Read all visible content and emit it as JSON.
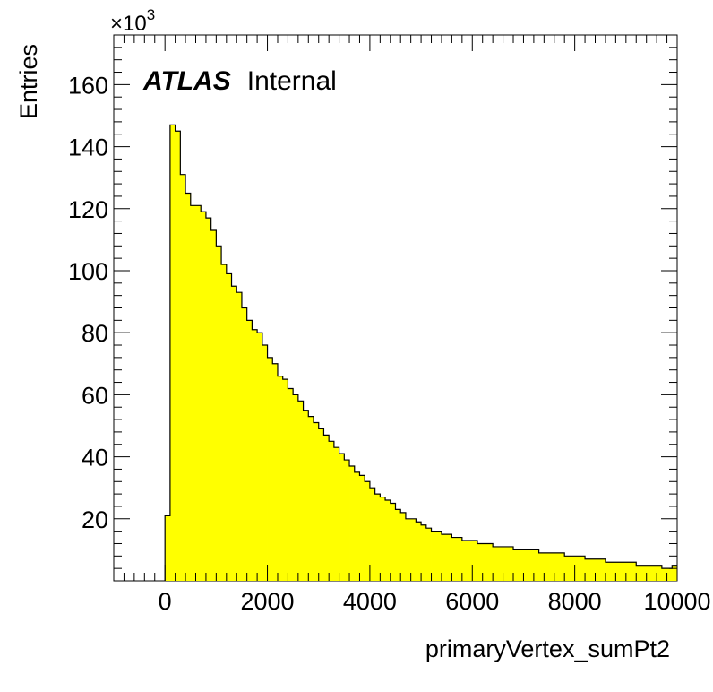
{
  "chart_data": {
    "type": "bar",
    "style": "step-histogram",
    "fill_color": "#ffff00",
    "line_color": "#000000",
    "label_main": "ATLAS",
    "label_sub": "Internal",
    "xlabel": "primaryVertex_sumPt2",
    "ylabel": "Entries",
    "y_multiplier_base": "×10",
    "y_multiplier_exp": "3",
    "xlim": [
      -1000,
      10000
    ],
    "ylim": [
      0,
      176
    ],
    "x_ticks": [
      0,
      2000,
      4000,
      6000,
      8000,
      10000
    ],
    "x_tick_labels": [
      "0",
      "2000",
      "4000",
      "6000",
      "8000",
      "10000"
    ],
    "y_ticks": [
      20,
      40,
      60,
      80,
      100,
      120,
      140,
      160
    ],
    "y_tick_labels": [
      "20",
      "40",
      "60",
      "80",
      "100",
      "120",
      "140",
      "160"
    ],
    "bin_width": 100,
    "bin_start": 0,
    "values": [
      21,
      147,
      145,
      131,
      125,
      121,
      121,
      119,
      117,
      113,
      108,
      102,
      99,
      95,
      93,
      88,
      84,
      81,
      80,
      76,
      72,
      70,
      66,
      65,
      62,
      60,
      58,
      55,
      53,
      51,
      49,
      47,
      45,
      43,
      41,
      39,
      37,
      35,
      34,
      32,
      30,
      28,
      27,
      26,
      25,
      23,
      22,
      20,
      20,
      19,
      18,
      17,
      16,
      16,
      15,
      15,
      14,
      14,
      13,
      13,
      13,
      12,
      12,
      12,
      11,
      11,
      11,
      11,
      10,
      10,
      10,
      10,
      10,
      9,
      9,
      9,
      9,
      9,
      8,
      8,
      8,
      8,
      7,
      7,
      7,
      7,
      6,
      6,
      6,
      6,
      6,
      6,
      5,
      5,
      5,
      5,
      5,
      4,
      4,
      5
    ]
  }
}
